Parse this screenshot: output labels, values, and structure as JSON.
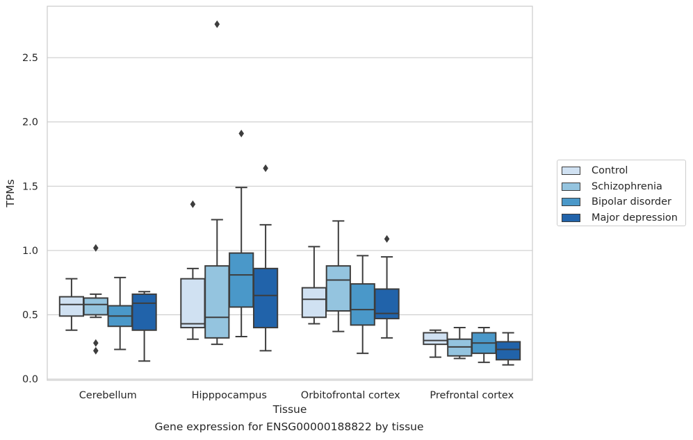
{
  "chart_data": {
    "type": "box",
    "title": "",
    "caption": "Gene expression for ENSG00000188822 by tissue",
    "xlabel": "Tissue",
    "ylabel": "TPMs",
    "ylim": [
      -0.01,
      2.9
    ],
    "yticks": [
      "0.0",
      "0.5",
      "1.0",
      "1.5",
      "2.0",
      "2.5"
    ],
    "grid": "horizontal",
    "legend_placement": "right",
    "categories": [
      "Cerebellum",
      "Hipppocampus",
      "Orbitofrontal cortex",
      "Prefrontal cortex"
    ],
    "series": [
      {
        "name": "Control",
        "color": "#d0e1f2",
        "boxes": [
          {
            "whislo": 0.38,
            "q1": 0.49,
            "med": 0.58,
            "q3": 0.64,
            "whishi": 0.78,
            "fliers": []
          },
          {
            "whislo": 0.31,
            "q1": 0.4,
            "med": 0.43,
            "q3": 0.78,
            "whishi": 0.86,
            "fliers": [
              1.36
            ]
          },
          {
            "whislo": 0.43,
            "q1": 0.48,
            "med": 0.62,
            "q3": 0.71,
            "whishi": 1.03,
            "fliers": []
          },
          {
            "whislo": 0.17,
            "q1": 0.27,
            "med": 0.3,
            "q3": 0.36,
            "whishi": 0.38,
            "fliers": []
          }
        ]
      },
      {
        "name": "Schizophrenia",
        "color": "#94c4df",
        "boxes": [
          {
            "whislo": 0.48,
            "q1": 0.5,
            "med": 0.58,
            "q3": 0.63,
            "whishi": 0.66,
            "fliers": [
              0.28,
              0.22,
              1.02
            ]
          },
          {
            "whislo": 0.27,
            "q1": 0.32,
            "med": 0.48,
            "q3": 0.88,
            "whishi": 1.24,
            "fliers": [
              2.76
            ]
          },
          {
            "whislo": 0.37,
            "q1": 0.53,
            "med": 0.77,
            "q3": 0.88,
            "whishi": 1.23,
            "fliers": []
          },
          {
            "whislo": 0.16,
            "q1": 0.18,
            "med": 0.25,
            "q3": 0.31,
            "whishi": 0.4,
            "fliers": []
          }
        ]
      },
      {
        "name": "Bipolar disorder",
        "color": "#4a98c9",
        "boxes": [
          {
            "whislo": 0.23,
            "q1": 0.41,
            "med": 0.49,
            "q3": 0.57,
            "whishi": 0.79,
            "fliers": []
          },
          {
            "whislo": 0.33,
            "q1": 0.56,
            "med": 0.81,
            "q3": 0.98,
            "whishi": 1.49,
            "fliers": [
              1.91
            ]
          },
          {
            "whislo": 0.2,
            "q1": 0.42,
            "med": 0.54,
            "q3": 0.74,
            "whishi": 0.96,
            "fliers": []
          },
          {
            "whislo": 0.13,
            "q1": 0.2,
            "med": 0.28,
            "q3": 0.36,
            "whishi": 0.4,
            "fliers": []
          }
        ]
      },
      {
        "name": "Major depression",
        "color": "#2163aa",
        "boxes": [
          {
            "whislo": 0.14,
            "q1": 0.38,
            "med": 0.59,
            "q3": 0.66,
            "whishi": 0.68,
            "fliers": []
          },
          {
            "whislo": 0.22,
            "q1": 0.4,
            "med": 0.65,
            "q3": 0.86,
            "whishi": 1.2,
            "fliers": [
              1.64
            ]
          },
          {
            "whislo": 0.32,
            "q1": 0.47,
            "med": 0.51,
            "q3": 0.7,
            "whishi": 0.95,
            "fliers": [
              1.09
            ]
          },
          {
            "whislo": 0.11,
            "q1": 0.15,
            "med": 0.23,
            "q3": 0.29,
            "whishi": 0.36,
            "fliers": []
          }
        ]
      }
    ]
  }
}
